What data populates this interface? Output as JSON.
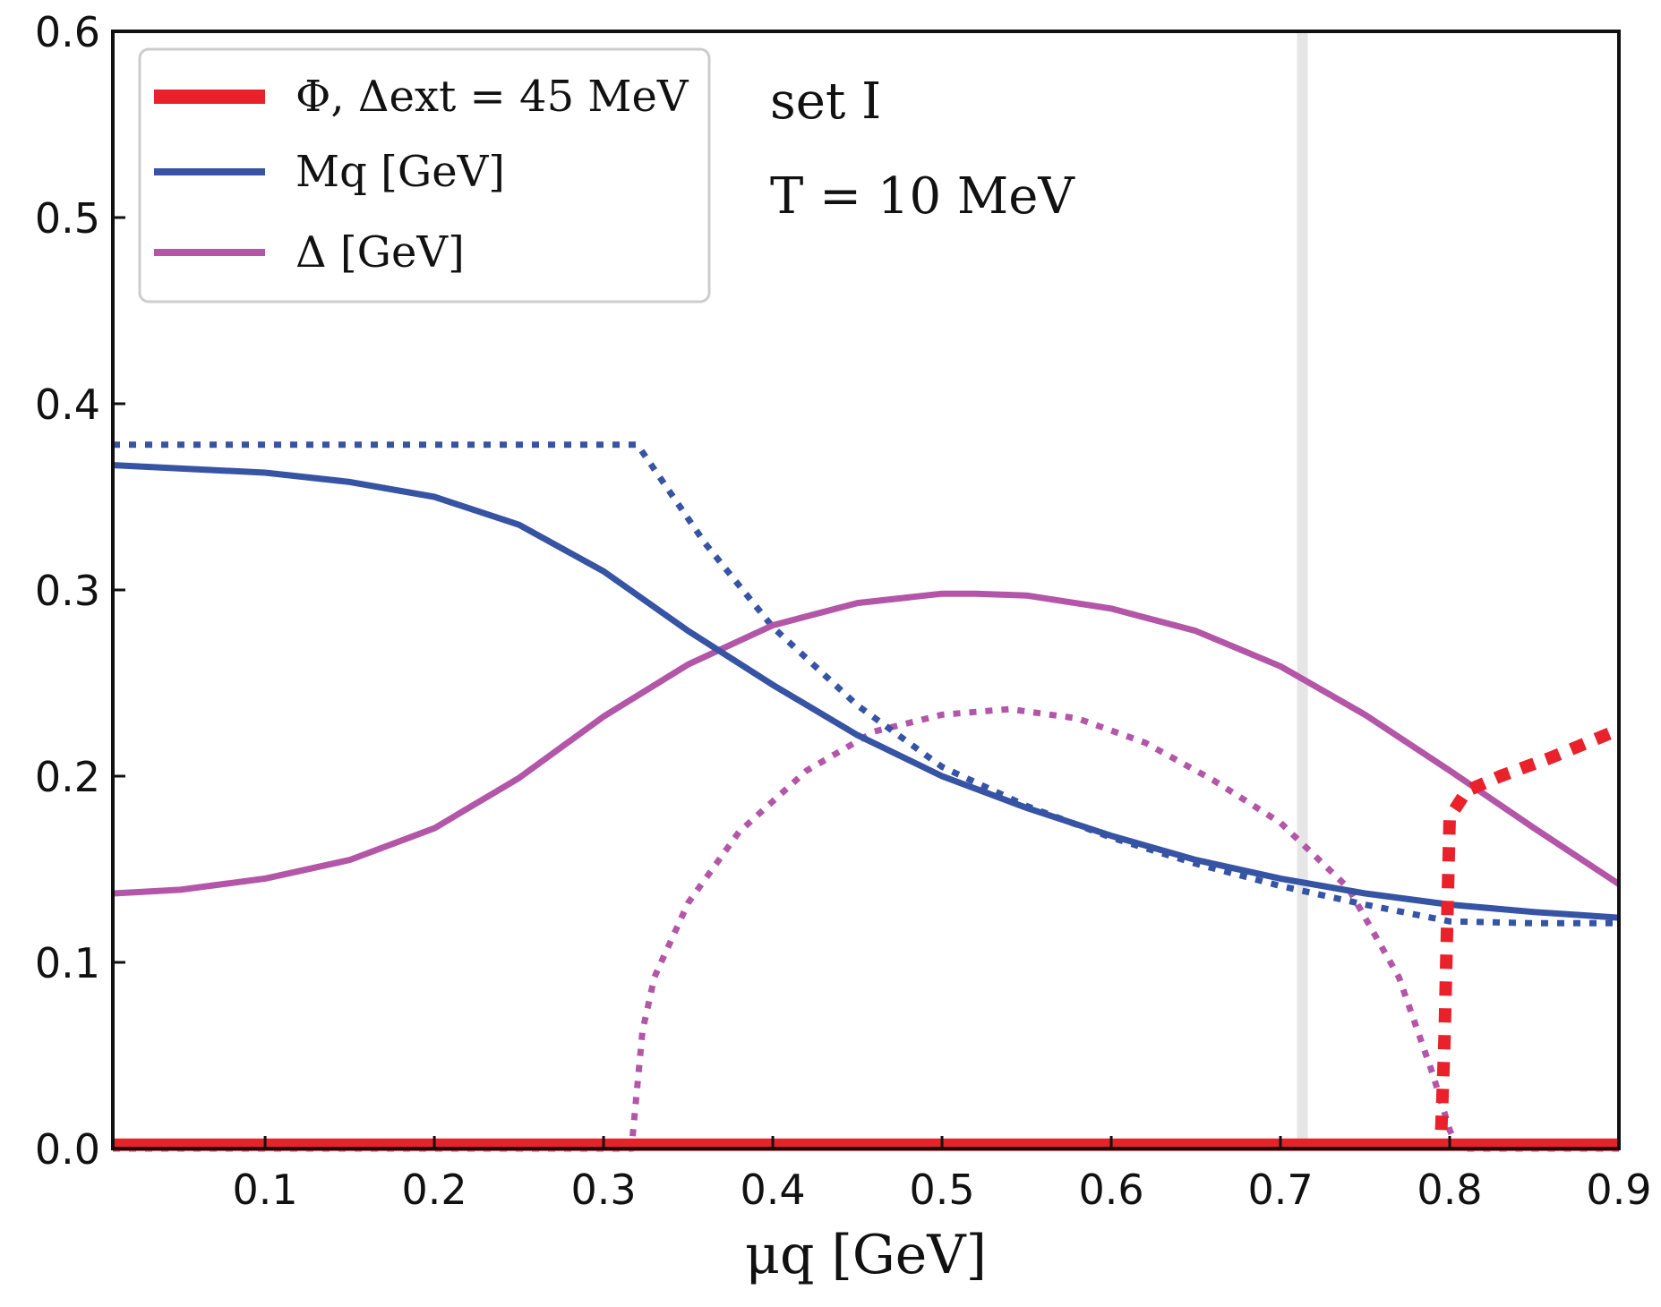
{
  "chart_data": {
    "type": "line",
    "title": "",
    "xlabel": "μq [GeV]",
    "ylabel": "",
    "xlim": [
      0.01,
      0.9
    ],
    "ylim": [
      0.0,
      0.6
    ],
    "x_ticks": [
      0.1,
      0.2,
      0.3,
      0.4,
      0.5,
      0.6,
      0.7,
      0.8,
      0.9
    ],
    "x_tick_labels": [
      "0.1",
      "0.2",
      "0.3",
      "0.4",
      "0.5",
      "0.6",
      "0.7",
      "0.8",
      "0.9"
    ],
    "y_ticks": [
      0.0,
      0.1,
      0.2,
      0.3,
      0.4,
      0.5,
      0.6
    ],
    "y_tick_labels": [
      "0.0",
      "0.1",
      "0.2",
      "0.3",
      "0.4",
      "0.5",
      "0.6"
    ],
    "grid": false,
    "legend_position": "top-left",
    "legend": [
      {
        "label": "Φ,  Δext = 45 MeV",
        "color": "#e8212b",
        "series": "phi_solid"
      },
      {
        "label": "Mq [GeV]",
        "color": "#3653a4",
        "series": "mq_solid"
      },
      {
        "label": "Δ [GeV]",
        "color": "#b456a8",
        "series": "delta_solid"
      }
    ],
    "annotations": [
      "set I",
      "T = 10 MeV"
    ],
    "vline": {
      "x": 0.713,
      "color": "#e6e6e6"
    },
    "series": [
      {
        "name": "Φ (Δext = 45 MeV)",
        "color": "#e8212b",
        "style": "solid",
        "width": "thick",
        "x": [
          0.01,
          0.9
        ],
        "y": [
          0.002,
          0.002
        ]
      },
      {
        "name": "Mq [GeV]",
        "color": "#3653a4",
        "style": "solid",
        "width": "normal",
        "x": [
          0.01,
          0.1,
          0.15,
          0.2,
          0.25,
          0.3,
          0.35,
          0.4,
          0.45,
          0.5,
          0.55,
          0.6,
          0.65,
          0.7,
          0.75,
          0.8,
          0.85,
          0.9
        ],
        "y": [
          0.367,
          0.363,
          0.358,
          0.35,
          0.335,
          0.31,
          0.278,
          0.249,
          0.222,
          0.2,
          0.183,
          0.168,
          0.155,
          0.145,
          0.137,
          0.131,
          0.127,
          0.124
        ]
      },
      {
        "name": "Δ [GeV]",
        "color": "#b456a8",
        "style": "solid",
        "width": "normal",
        "x": [
          0.01,
          0.05,
          0.1,
          0.15,
          0.2,
          0.25,
          0.3,
          0.35,
          0.4,
          0.45,
          0.5,
          0.52,
          0.55,
          0.6,
          0.65,
          0.7,
          0.75,
          0.8,
          0.85,
          0.9
        ],
        "y": [
          0.137,
          0.139,
          0.145,
          0.155,
          0.172,
          0.199,
          0.232,
          0.26,
          0.281,
          0.293,
          0.298,
          0.298,
          0.297,
          0.29,
          0.278,
          0.259,
          0.233,
          0.203,
          0.172,
          0.142
        ]
      },
      {
        "name": "Mq dotted",
        "color": "#3653a4",
        "style": "dotted",
        "width": "normal",
        "x": [
          0.01,
          0.1,
          0.2,
          0.3,
          0.32,
          0.36,
          0.4,
          0.45,
          0.5,
          0.55,
          0.6,
          0.65,
          0.7,
          0.75,
          0.8,
          0.85,
          0.9
        ],
        "y": [
          0.378,
          0.378,
          0.378,
          0.378,
          0.378,
          0.325,
          0.28,
          0.238,
          0.205,
          0.184,
          0.167,
          0.153,
          0.141,
          0.131,
          0.122,
          0.121,
          0.121
        ]
      },
      {
        "name": "Δ dotted",
        "color": "#b456a8",
        "style": "dotted",
        "width": "normal",
        "x": [
          0.01,
          0.317,
          0.317,
          0.323,
          0.33,
          0.35,
          0.38,
          0.42,
          0.46,
          0.5,
          0.54,
          0.58,
          0.62,
          0.66,
          0.7,
          0.74,
          0.77,
          0.79,
          0.8,
          0.805,
          0.9
        ],
        "y": [
          0.0,
          0.0,
          0.005,
          0.063,
          0.092,
          0.132,
          0.17,
          0.203,
          0.224,
          0.233,
          0.236,
          0.231,
          0.218,
          0.198,
          0.175,
          0.14,
          0.092,
          0.04,
          0.01,
          0.0,
          0.0
        ]
      },
      {
        "name": "Φ dotted",
        "color": "#e8212b",
        "style": "dotted",
        "width": "thick",
        "x": [
          0.795,
          0.796,
          0.797,
          0.798,
          0.799,
          0.8,
          0.8,
          0.81,
          0.83,
          0.86,
          0.9
        ],
        "y": [
          0.01,
          0.035,
          0.06,
          0.1,
          0.14,
          0.178,
          0.178,
          0.192,
          0.2,
          0.21,
          0.225
        ]
      }
    ]
  }
}
